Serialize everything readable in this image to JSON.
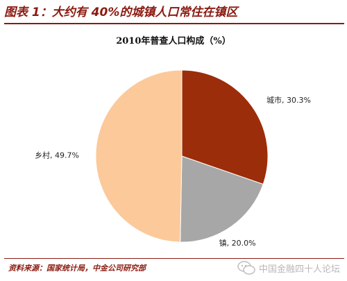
{
  "figure": {
    "title": "图表 1：大约有 40%的城镇人口常住在镇区",
    "source": "资料来源：国家统计局，中金公司研究部",
    "watermark": "中国金融四十人论坛"
  },
  "chart_data": {
    "type": "pie",
    "title": "2010年普查人口构成（%）",
    "slices": [
      {
        "label": "城市, 30.3%",
        "value": 30.3,
        "color": "#9b2d0a"
      },
      {
        "label": "镇, 20.0%",
        "value": 20.0,
        "color": "#a7a7a7"
      },
      {
        "label": "乡村, 49.7%",
        "value": 49.7,
        "color": "#fcc99a"
      }
    ],
    "start_angle_deg": 0,
    "direction": "clockwise",
    "legend": "none",
    "data_labels": "outside"
  }
}
